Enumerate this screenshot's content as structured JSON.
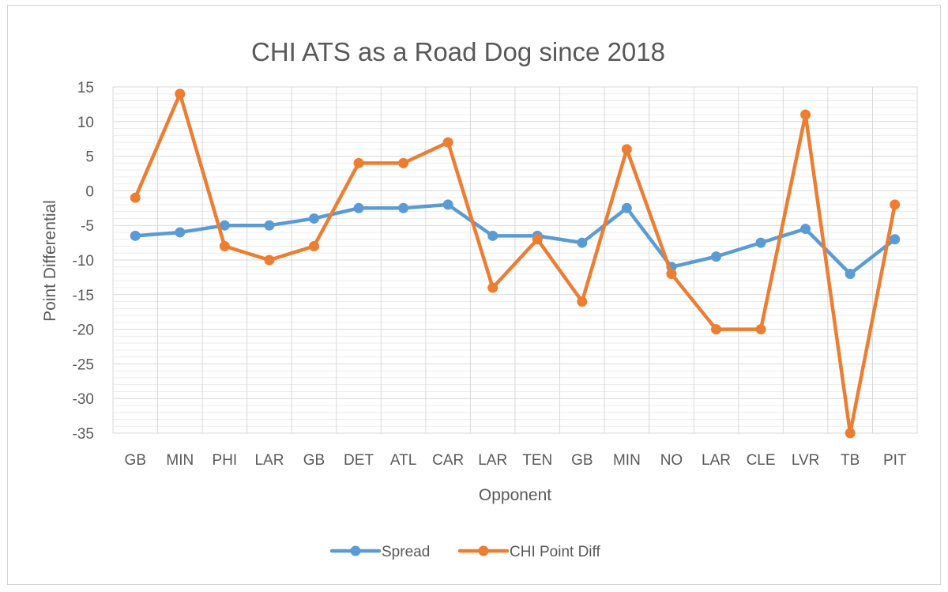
{
  "chart_data": {
    "type": "line",
    "title": "CHI ATS as a Road Dog since 2018",
    "xlabel": "Opponent",
    "ylabel": "Point Differential",
    "categories": [
      "GB",
      "MIN",
      "PHI",
      "LAR",
      "GB",
      "DET",
      "ATL",
      "CAR",
      "LAR",
      "TEN",
      "GB",
      "MIN",
      "NO",
      "LAR",
      "CLE",
      "LVR",
      "TB",
      "PIT"
    ],
    "ylim": [
      -35,
      15
    ],
    "yticks": [
      15,
      10,
      5,
      0,
      -5,
      -10,
      -15,
      -20,
      -25,
      -30,
      -35
    ],
    "grid": true,
    "legend_position": "bottom",
    "series": [
      {
        "name": "Spread",
        "color": "#5b9bd5",
        "values": [
          -6.5,
          -6,
          -5,
          -5,
          -4,
          -2.5,
          -2.5,
          -2,
          -6.5,
          -6.5,
          -7.5,
          -2.5,
          -11,
          -9.5,
          -7.5,
          -5.5,
          -12,
          -7
        ]
      },
      {
        "name": "CHI Point Diff",
        "color": "#ed7d31",
        "values": [
          -1,
          14,
          -8,
          -10,
          -8,
          4,
          4,
          7,
          -14,
          -7,
          -16,
          6,
          -12,
          -20,
          -20,
          11,
          -35,
          -2
        ]
      }
    ]
  }
}
